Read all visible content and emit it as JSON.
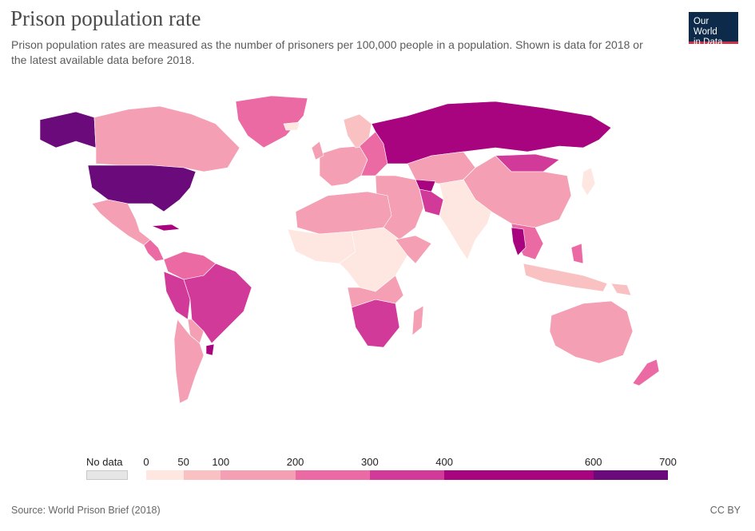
{
  "header": {
    "title": "Prison population rate",
    "subtitle": "Prison population rates are measured as the number of prisoners per 100,000 people in a population. Shown is data for 2018 or the latest available data before 2018."
  },
  "logo": {
    "line1": "Our World",
    "line2": "in Data"
  },
  "legend": {
    "no_data_label": "No data",
    "ticks": [
      "0",
      "50",
      "100",
      "200",
      "300",
      "400",
      "600",
      "700"
    ],
    "bins": [
      {
        "from": 0,
        "to": 50,
        "color": "#fde7e0"
      },
      {
        "from": 50,
        "to": 100,
        "color": "#f9c1c1"
      },
      {
        "from": 100,
        "to": 200,
        "color": "#f49fb4"
      },
      {
        "from": 200,
        "to": 300,
        "color": "#ec6aa3"
      },
      {
        "from": 300,
        "to": 400,
        "color": "#d23a99"
      },
      {
        "from": 400,
        "to": 600,
        "color": "#a8047f"
      },
      {
        "from": 600,
        "to": 700,
        "color": "#6b0a7a"
      }
    ],
    "no_data_color": "#e6e6e6"
  },
  "footer": {
    "source": "Source: World Prison Brief (2018)",
    "license": "CC BY"
  }
}
